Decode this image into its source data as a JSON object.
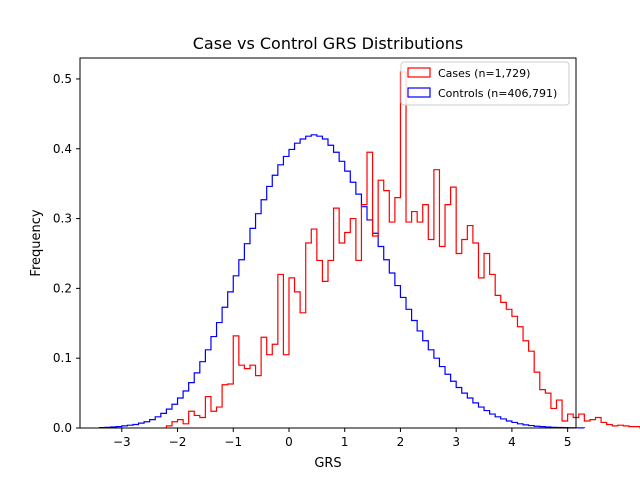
{
  "chart_data": {
    "type": "step-histogram",
    "title": "Case vs Control GRS Distributions",
    "xlabel": "GRS",
    "ylabel": "Frequency",
    "xlim": [
      -3.75,
      5.15
    ],
    "ylim": [
      0,
      0.53
    ],
    "xticks": [
      -3,
      -2,
      -1,
      0,
      1,
      2,
      3,
      4,
      5
    ],
    "xtick_labels": [
      "−3",
      "−2",
      "−1",
      "0",
      "1",
      "2",
      "3",
      "4",
      "5"
    ],
    "yticks": [
      0.0,
      0.1,
      0.2,
      0.3,
      0.4,
      0.5
    ],
    "ytick_labels": [
      "0.0",
      "0.1",
      "0.2",
      "0.3",
      "0.4",
      "0.5"
    ],
    "legend_position": "top-right",
    "series": [
      {
        "name": "Cases (n=1,729)",
        "color": "#ff0000",
        "x_start": -2.2,
        "bin_width": 0.1,
        "values": [
          0.003,
          0.009,
          0.012,
          0.006,
          0.024,
          0.018,
          0.015,
          0.045,
          0.024,
          0.03,
          0.062,
          0.063,
          0.132,
          0.09,
          0.085,
          0.09,
          0.075,
          0.13,
          0.105,
          0.12,
          0.22,
          0.105,
          0.215,
          0.195,
          0.165,
          0.265,
          0.285,
          0.24,
          0.21,
          0.24,
          0.315,
          0.265,
          0.28,
          0.3,
          0.24,
          0.32,
          0.395,
          0.275,
          0.355,
          0.34,
          0.295,
          0.33,
          0.51,
          0.295,
          0.31,
          0.295,
          0.32,
          0.27,
          0.37,
          0.26,
          0.32,
          0.345,
          0.25,
          0.27,
          0.29,
          0.265,
          0.215,
          0.25,
          0.22,
          0.19,
          0.18,
          0.17,
          0.16,
          0.145,
          0.125,
          0.11,
          0.08,
          0.055,
          0.05,
          0.028,
          0.04,
          0.01,
          0.02,
          0.015,
          0.02,
          0.01,
          0.012,
          0.015,
          0.008,
          0.005,
          0.003,
          0.004,
          0.003,
          0.002,
          0.002,
          0.0,
          0.01,
          0.0,
          0.0,
          0.0,
          0.0,
          0.0,
          0.0,
          0.0
        ]
      },
      {
        "name": "Controls (n=406,791)",
        "color": "#0000ff",
        "x_start": -3.4,
        "bin_width": 0.1,
        "values": [
          0.0005,
          0.001,
          0.0015,
          0.002,
          0.003,
          0.004,
          0.005,
          0.007,
          0.009,
          0.012,
          0.016,
          0.021,
          0.027,
          0.034,
          0.043,
          0.053,
          0.065,
          0.079,
          0.095,
          0.112,
          0.131,
          0.151,
          0.173,
          0.195,
          0.218,
          0.241,
          0.264,
          0.286,
          0.307,
          0.327,
          0.346,
          0.362,
          0.377,
          0.389,
          0.399,
          0.408,
          0.414,
          0.418,
          0.42,
          0.418,
          0.414,
          0.405,
          0.395,
          0.382,
          0.368,
          0.352,
          0.335,
          0.317,
          0.298,
          0.279,
          0.26,
          0.241,
          0.222,
          0.204,
          0.187,
          0.17,
          0.154,
          0.139,
          0.125,
          0.112,
          0.1,
          0.088,
          0.077,
          0.067,
          0.058,
          0.05,
          0.043,
          0.036,
          0.03,
          0.025,
          0.02,
          0.016,
          0.013,
          0.01,
          0.008,
          0.006,
          0.0045,
          0.0035,
          0.0025,
          0.002,
          0.0015,
          0.001,
          0.0008,
          0.0006,
          0.0004,
          0.0003,
          0.0002
        ]
      }
    ]
  }
}
